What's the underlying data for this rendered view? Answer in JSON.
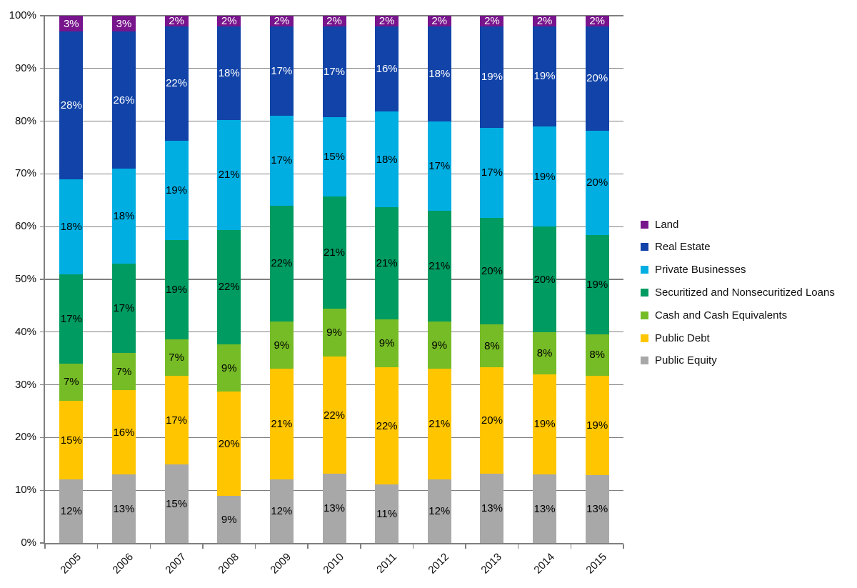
{
  "chart_data": {
    "type": "bar",
    "variant": "stacked-100",
    "title": "",
    "xlabel": "",
    "ylabel": "",
    "categories": [
      "2005",
      "2006",
      "2007",
      "2008",
      "2009",
      "2010",
      "2011",
      "2012",
      "2013",
      "2014",
      "2015"
    ],
    "series": [
      {
        "name": "Public Equity",
        "color": "#a8a8a8",
        "label_color": "#000000",
        "values": [
          12,
          13,
          15,
          9,
          12,
          13,
          11,
          12,
          13,
          13,
          13
        ]
      },
      {
        "name": "Public Debt",
        "color": "#ffc600",
        "label_color": "#000000",
        "values": [
          15,
          16,
          17,
          20,
          21,
          22,
          22,
          21,
          20,
          19,
          19
        ]
      },
      {
        "name": "Cash and Cash Equivalents",
        "color": "#76bc26",
        "label_color": "#000000",
        "values": [
          7,
          7,
          7,
          9,
          9,
          9,
          9,
          9,
          8,
          8,
          8
        ]
      },
      {
        "name": "Securitized and Nonsecuritized Loans",
        "color": "#009b60",
        "label_color": "#000000",
        "values": [
          17,
          17,
          19,
          22,
          22,
          21,
          21,
          21,
          20,
          20,
          19
        ]
      },
      {
        "name": "Private Businesses",
        "color": "#00aee2",
        "label_color": "#000000",
        "values": [
          18,
          18,
          19,
          21,
          17,
          15,
          18,
          17,
          17,
          19,
          20
        ]
      },
      {
        "name": "Real Estate",
        "color": "#1143a8",
        "label_color": "#ffffff",
        "values": [
          28,
          26,
          22,
          18,
          17,
          17,
          16,
          18,
          19,
          19,
          20
        ]
      },
      {
        "name": "Land",
        "color": "#78148c",
        "label_color": "#ffffff",
        "values": [
          3,
          3,
          2,
          2,
          2,
          2,
          2,
          2,
          2,
          2,
          2
        ]
      }
    ],
    "data_label_suffix": "%",
    "y_axis": {
      "min": 0,
      "max": 100,
      "tick_step": 10,
      "tick_labels": [
        "0%",
        "10%",
        "20%",
        "30%",
        "40%",
        "50%",
        "60%",
        "70%",
        "80%",
        "90%",
        "100%"
      ],
      "grid": true
    },
    "legend": {
      "position": "right",
      "order": [
        "Land",
        "Real Estate",
        "Private Businesses",
        "Securitized and Nonsecuritized Loans",
        "Cash and Cash Equivalents",
        "Public Debt",
        "Public Equity"
      ]
    }
  }
}
